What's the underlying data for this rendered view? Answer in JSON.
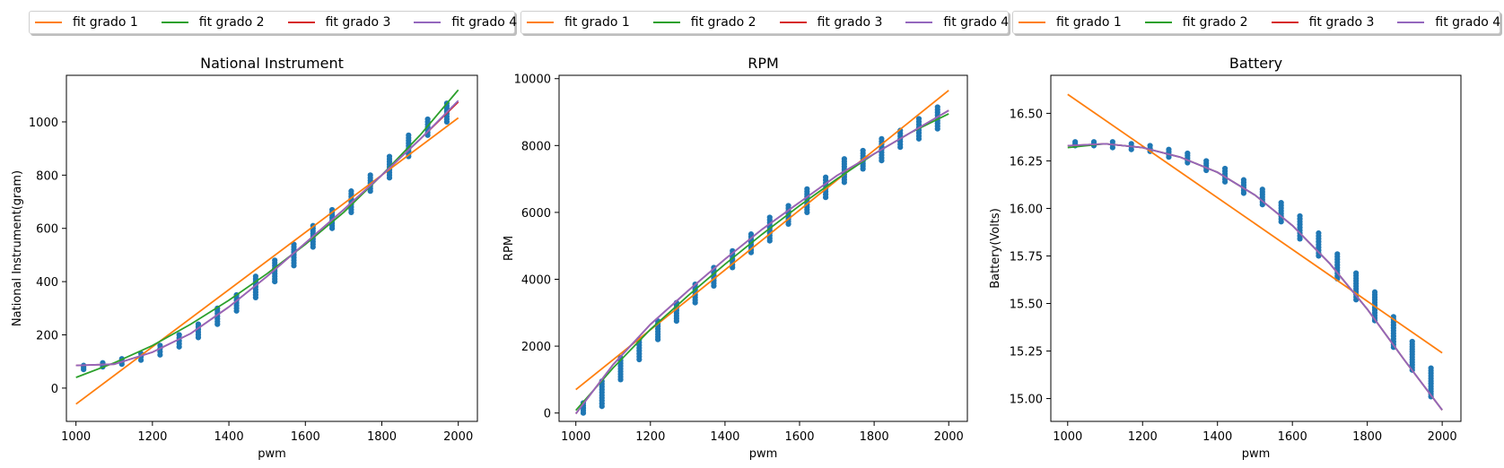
{
  "legend": [
    "fit grado 1",
    "fit grado 2",
    "fit grado 3",
    "fit grado 4"
  ],
  "colors": {
    "fit1": "#ff7f0e",
    "fit2": "#2ca02c",
    "fit3": "#d62728",
    "fit4": "#9467bd",
    "points": "#1f77b4"
  },
  "chart_data": [
    {
      "type": "scatter",
      "title": "National Instrument",
      "xlabel": "pwm",
      "ylabel": "National Instrument(gram)",
      "xlim": [
        975,
        2050
      ],
      "ylim": [
        -125,
        1175
      ],
      "xticks": [
        1000,
        1200,
        1400,
        1600,
        1800,
        2000
      ],
      "yticks": [
        0,
        200,
        400,
        600,
        800,
        1000
      ],
      "ytick_labels": [
        "0",
        "200",
        "400",
        "600",
        "800",
        "1000"
      ],
      "points": {
        "x": [
          1020,
          1070,
          1120,
          1170,
          1220,
          1270,
          1320,
          1370,
          1420,
          1470,
          1520,
          1570,
          1620,
          1670,
          1720,
          1770,
          1820,
          1870,
          1920,
          1970
        ],
        "ymin": [
          70,
          80,
          90,
          105,
          125,
          155,
          190,
          240,
          290,
          340,
          400,
          460,
          530,
          600,
          660,
          740,
          790,
          870,
          950,
          1000
        ],
        "ymax": [
          85,
          95,
          110,
          130,
          160,
          200,
          240,
          300,
          350,
          420,
          480,
          540,
          610,
          670,
          740,
          800,
          870,
          950,
          1010,
          1070
        ]
      },
      "fits": [
        {
          "name": "fit grado 1",
          "x": [
            1000,
            2000
          ],
          "y": [
            -60,
            1015
          ]
        },
        {
          "name": "fit grado 2",
          "x": [
            1000,
            1100,
            1200,
            1300,
            1400,
            1500,
            1600,
            1700,
            1800,
            1900,
            2000
          ],
          "y": [
            40,
            95,
            160,
            240,
            330,
            430,
            540,
            660,
            800,
            950,
            1120
          ]
        },
        {
          "name": "fit grado 3",
          "x": [
            1000,
            1100,
            1200,
            1300,
            1400,
            1500,
            1600,
            1700,
            1800,
            1900,
            2000
          ],
          "y": [
            85,
            90,
            135,
            205,
            305,
            420,
            545,
            670,
            800,
            935,
            1075
          ]
        },
        {
          "name": "fit grado 4",
          "x": [
            1000,
            1100,
            1200,
            1300,
            1400,
            1500,
            1600,
            1700,
            1800,
            1900,
            2000
          ],
          "y": [
            85,
            90,
            135,
            205,
            305,
            420,
            545,
            670,
            800,
            935,
            1080
          ]
        }
      ]
    },
    {
      "type": "scatter",
      "title": "RPM",
      "xlabel": "pwm",
      "ylabel": "RPM",
      "xlim": [
        955,
        2050
      ],
      "ylim": [
        -250,
        10100
      ],
      "xticks": [
        1000,
        1200,
        1400,
        1600,
        1800,
        2000
      ],
      "yticks": [
        0,
        2000,
        4000,
        6000,
        8000,
        10000
      ],
      "ytick_labels": [
        "0",
        "2000",
        "4000",
        "6000",
        "8000",
        "10000"
      ],
      "points": {
        "x": [
          1020,
          1070,
          1120,
          1170,
          1220,
          1270,
          1320,
          1370,
          1420,
          1470,
          1520,
          1570,
          1620,
          1670,
          1720,
          1770,
          1820,
          1870,
          1920,
          1970
        ],
        "ymin": [
          0,
          200,
          1000,
          1600,
          2200,
          2750,
          3300,
          3800,
          4350,
          4800,
          5150,
          5650,
          6000,
          6450,
          6900,
          7300,
          7550,
          7950,
          8200,
          8500
        ],
        "ymax": [
          300,
          950,
          1650,
          2200,
          2750,
          3300,
          3850,
          4350,
          4850,
          5350,
          5850,
          6200,
          6700,
          7050,
          7600,
          7850,
          8200,
          8450,
          8800,
          9150
        ]
      },
      "fits": [
        {
          "name": "fit grado 1",
          "x": [
            1000,
            2000
          ],
          "y": [
            700,
            9650
          ]
        },
        {
          "name": "fit grado 2",
          "x": [
            1000,
            1100,
            1200,
            1300,
            1400,
            1500,
            1600,
            1700,
            1800,
            1900,
            2000
          ],
          "y": [
            80,
            1350,
            2500,
            3500,
            4450,
            5350,
            6200,
            7000,
            7750,
            8400,
            8950
          ]
        },
        {
          "name": "fit grado 3",
          "x": [
            1000,
            1100,
            1200,
            1300,
            1400,
            1500,
            1600,
            1700,
            1800,
            1900,
            2000
          ],
          "y": [
            -20,
            1450,
            2650,
            3650,
            4600,
            5500,
            6300,
            7100,
            7750,
            8400,
            9050
          ]
        },
        {
          "name": "fit grado 4",
          "x": [
            1000,
            1100,
            1200,
            1300,
            1400,
            1500,
            1600,
            1700,
            1800,
            1900,
            2000
          ],
          "y": [
            -20,
            1450,
            2650,
            3650,
            4600,
            5500,
            6300,
            7100,
            7750,
            8400,
            9050
          ]
        }
      ]
    },
    {
      "type": "scatter",
      "title": "Battery",
      "xlabel": "pwm",
      "ylabel": "Battery(Volts)",
      "xlim": [
        955,
        2050
      ],
      "ylim": [
        14.88,
        16.7
      ],
      "xticks": [
        1000,
        1200,
        1400,
        1600,
        1800,
        2000
      ],
      "yticks": [
        15.0,
        15.25,
        15.5,
        15.75,
        16.0,
        16.25,
        16.5
      ],
      "ytick_labels": [
        "15.00",
        "15.25",
        "15.50",
        "15.75",
        "16.00",
        "16.25",
        "16.50"
      ],
      "points": {
        "x": [
          1020,
          1070,
          1120,
          1170,
          1220,
          1270,
          1320,
          1370,
          1420,
          1470,
          1520,
          1570,
          1620,
          1670,
          1720,
          1770,
          1820,
          1870,
          1920,
          1970
        ],
        "ymin": [
          16.33,
          16.33,
          16.32,
          16.31,
          16.3,
          16.27,
          16.24,
          16.2,
          16.14,
          16.08,
          16.02,
          15.93,
          15.84,
          15.75,
          15.63,
          15.52,
          15.41,
          15.27,
          15.15,
          15.01
        ],
        "ymax": [
          16.35,
          16.35,
          16.35,
          16.34,
          16.33,
          16.31,
          16.29,
          16.25,
          16.21,
          16.15,
          16.1,
          16.03,
          15.96,
          15.87,
          15.76,
          15.66,
          15.56,
          15.43,
          15.3,
          15.16
        ]
      },
      "fits": [
        {
          "name": "fit grado 1",
          "x": [
            1000,
            2000
          ],
          "y": [
            16.6,
            15.24
          ]
        },
        {
          "name": "fit grado 2",
          "x": [
            1000,
            1100,
            1200,
            1300,
            1400,
            1500,
            1600,
            1700,
            1800,
            1900,
            2000
          ],
          "y": [
            16.32,
            16.34,
            16.32,
            16.27,
            16.19,
            16.07,
            15.91,
            15.71,
            15.47,
            15.2,
            14.94
          ]
        },
        {
          "name": "fit grado 3",
          "x": [
            1000,
            1100,
            1200,
            1300,
            1400,
            1500,
            1600,
            1700,
            1800,
            1900,
            2000
          ],
          "y": [
            16.33,
            16.34,
            16.32,
            16.27,
            16.19,
            16.07,
            15.91,
            15.71,
            15.47,
            15.2,
            14.94
          ]
        },
        {
          "name": "fit grado 4",
          "x": [
            1000,
            1100,
            1200,
            1300,
            1400,
            1500,
            1600,
            1700,
            1800,
            1900,
            2000
          ],
          "y": [
            16.33,
            16.34,
            16.32,
            16.27,
            16.19,
            16.07,
            15.91,
            15.71,
            15.47,
            15.2,
            14.94
          ]
        }
      ]
    }
  ]
}
